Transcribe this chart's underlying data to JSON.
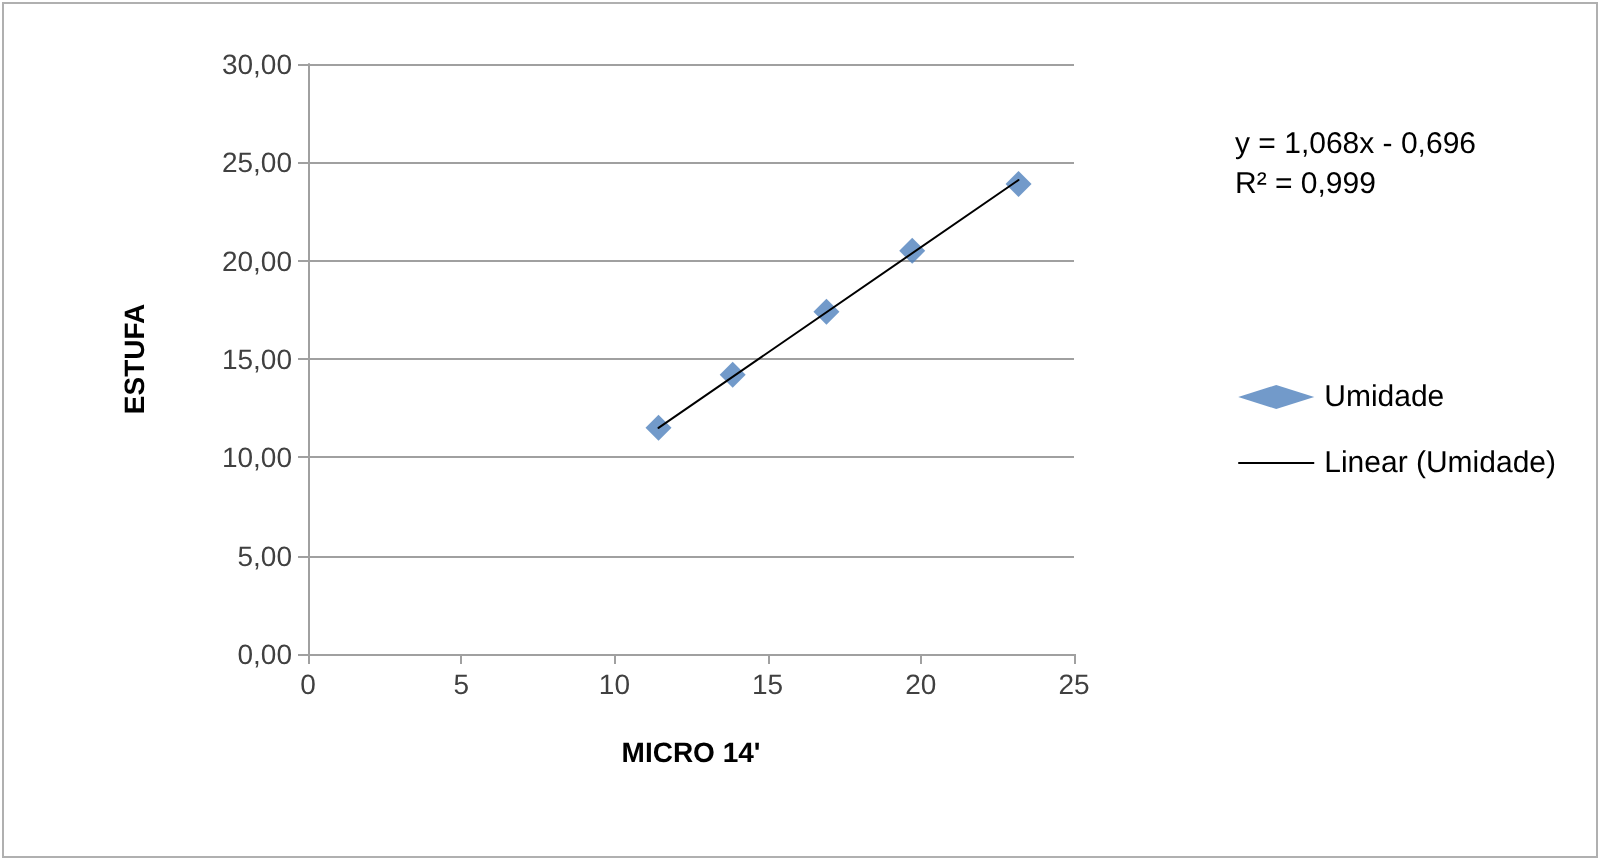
{
  "chart_data": {
    "type": "scatter",
    "xlabel": "MICRO 14'",
    "ylabel": "ESTUFA",
    "xlim": [
      0,
      25
    ],
    "xticks": [
      0,
      5,
      10,
      15,
      20,
      25
    ],
    "ylim": [
      0,
      30
    ],
    "yticks": [
      {
        "value": 0,
        "label": "0,00"
      },
      {
        "value": 5,
        "label": "5,00"
      },
      {
        "value": 10,
        "label": "10,00"
      },
      {
        "value": 15,
        "label": "15,00"
      },
      {
        "value": 20,
        "label": "20,00"
      },
      {
        "value": 25,
        "label": "25,00"
      },
      {
        "value": 30,
        "label": "30,00"
      }
    ],
    "grid": "y",
    "legend": "right",
    "marker": "diamond",
    "annotations": [
      "y = 1,068x - 0,696\nR² = 0,999"
    ],
    "series": [
      {
        "name": "Umidade",
        "color": "#4f81bd",
        "x": [
          11.44,
          13.86,
          16.92,
          19.72,
          23.19
        ],
        "values": [
          11.5,
          14.2,
          17.4,
          20.5,
          23.9
        ]
      },
      {
        "name": "Linear (Umidade)",
        "type": "line",
        "color": "#000000",
        "marker": "none",
        "line_style": "solid",
        "x": [
          11.44,
          23.19
        ],
        "values": [
          11.5,
          24.1
        ]
      }
    ]
  }
}
